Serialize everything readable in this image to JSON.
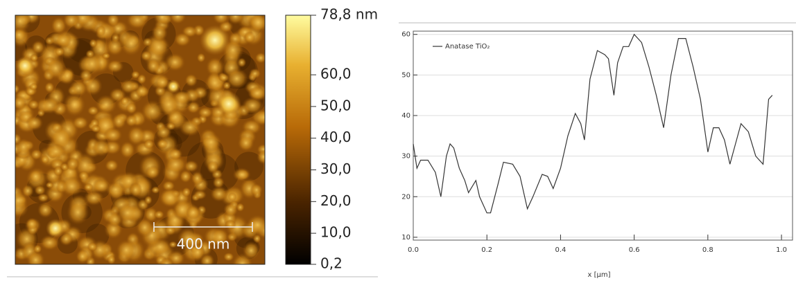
{
  "chart_data": [
    {
      "type": "afm-image",
      "scale_bar": "400 nm",
      "colorbar_lim": [
        0.2,
        78.8
      ],
      "colorbar_ticks": [
        {
          "value": 78.8,
          "label": "78,8 nm"
        },
        {
          "value": 60,
          "label": "60,0"
        },
        {
          "value": 50,
          "label": "50,0"
        },
        {
          "value": 40,
          "label": "40,0"
        },
        {
          "value": 30,
          "label": "30,0"
        },
        {
          "value": 20,
          "label": "20,0"
        },
        {
          "value": 10,
          "label": "10,0"
        },
        {
          "value": 0.2,
          "label": "0,2"
        }
      ]
    },
    {
      "type": "line",
      "x_label": "x [µm]",
      "x": [
        0.0,
        0.01,
        0.02,
        0.04,
        0.06,
        0.075,
        0.09,
        0.1,
        0.11,
        0.125,
        0.14,
        0.15,
        0.17,
        0.18,
        0.2,
        0.21,
        0.23,
        0.245,
        0.27,
        0.29,
        0.31,
        0.325,
        0.35,
        0.365,
        0.38,
        0.4,
        0.42,
        0.44,
        0.455,
        0.465,
        0.48,
        0.5,
        0.52,
        0.53,
        0.545,
        0.555,
        0.57,
        0.585,
        0.6,
        0.62,
        0.64,
        0.66,
        0.68,
        0.7,
        0.72,
        0.74,
        0.76,
        0.78,
        0.8,
        0.815,
        0.83,
        0.845,
        0.86,
        0.875,
        0.89,
        0.91,
        0.93,
        0.95,
        0.965,
        0.975
      ],
      "series": [
        {
          "name": "Anatase TiO₂",
          "color": "#333333",
          "values": [
            33,
            27,
            29,
            29,
            26,
            20,
            30,
            33,
            32,
            27,
            24,
            21,
            24,
            20,
            16,
            16,
            23,
            28.5,
            28,
            25,
            17,
            20,
            25.5,
            25,
            22,
            27,
            35,
            40.5,
            38,
            34,
            49,
            56,
            55,
            54,
            45,
            53,
            57,
            57,
            60,
            58,
            52,
            45,
            37,
            50,
            59,
            59,
            52,
            44,
            31,
            37,
            37,
            34,
            28,
            33,
            38,
            36,
            30,
            28,
            44,
            45
          ]
        }
      ],
      "xlim": [
        0,
        1.03
      ],
      "ylim": [
        9.3,
        60.8
      ],
      "xticks": [
        {
          "value": 0,
          "label": "0.0"
        },
        0.2,
        0.4,
        0.6,
        0.8,
        {
          "value": 1,
          "label": "1.0"
        }
      ],
      "yticks": [
        10,
        20,
        30,
        40,
        50,
        60
      ],
      "grid": true
    }
  ]
}
